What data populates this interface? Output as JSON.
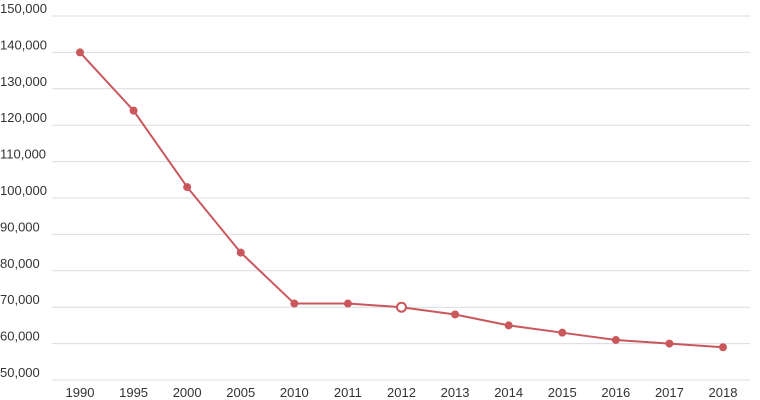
{
  "chart_data": {
    "type": "line",
    "title": "",
    "xlabel": "",
    "ylabel": "",
    "categories": [
      "1990",
      "1995",
      "2000",
      "2005",
      "2010",
      "2011",
      "2012",
      "2013",
      "2014",
      "2015",
      "2016",
      "2017",
      "2018"
    ],
    "series": [
      {
        "values": [
          140000,
          124000,
          103000,
          85000,
          71000,
          71000,
          70000,
          68000,
          65000,
          63000,
          61000,
          60000,
          59000
        ],
        "color": "#c9575b"
      }
    ],
    "highlighted_point": "2012",
    "y_ticks": [
      "50,000",
      "60,000",
      "70,000",
      "80,000",
      "90,000",
      "100,000",
      "110,000",
      "120,000",
      "130,000",
      "140,000",
      "150,000"
    ],
    "ylim": [
      50000,
      150000
    ],
    "grid": true,
    "legend": "none"
  }
}
